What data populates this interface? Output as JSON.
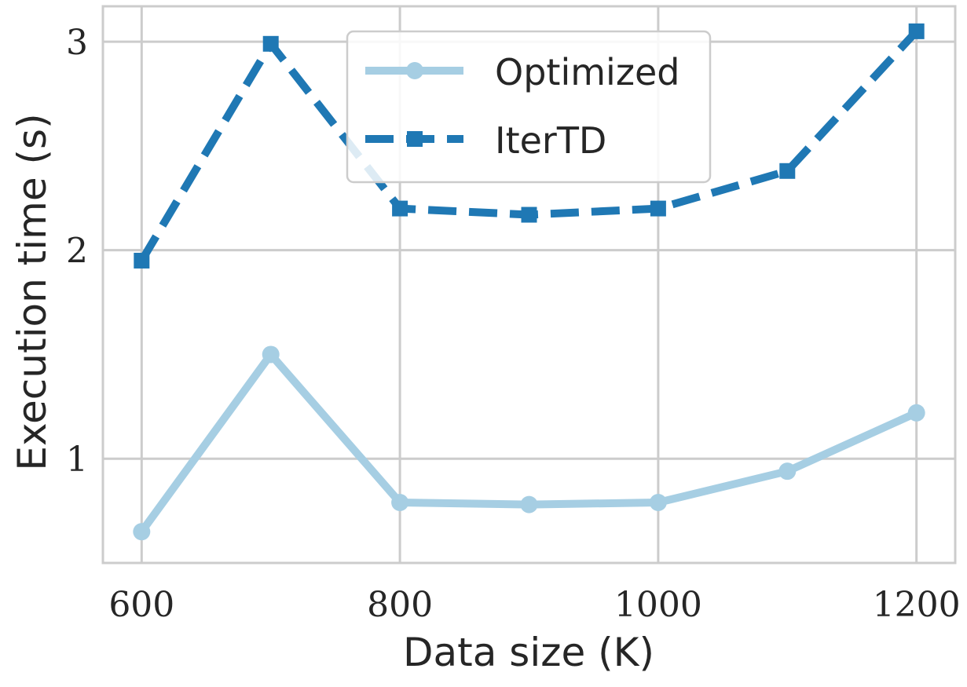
{
  "chart_data": {
    "type": "line",
    "title": "",
    "xlabel": "Data size (K)",
    "ylabel": "Execution time (s)",
    "x": [
      600,
      700,
      800,
      900,
      1000,
      1100,
      1200
    ],
    "xticks": [
      "600",
      "800",
      "1000",
      "1200"
    ],
    "yticks": [
      "1",
      "2",
      "3"
    ],
    "xlim": [
      570,
      1230
    ],
    "ylim": [
      0.5,
      3.17
    ],
    "grid": true,
    "legend_position": "top-center",
    "series": [
      {
        "name": "Optimized",
        "values": [
          0.65,
          1.5,
          0.79,
          0.78,
          0.79,
          0.94,
          1.22
        ],
        "color": "#a6cee3",
        "line_style": "solid",
        "marker": "circle"
      },
      {
        "name": "IterTD",
        "values": [
          1.95,
          2.99,
          2.2,
          2.17,
          2.2,
          2.38,
          3.05
        ],
        "color": "#1f78b4",
        "line_style": "dashed",
        "marker": "square"
      }
    ]
  }
}
